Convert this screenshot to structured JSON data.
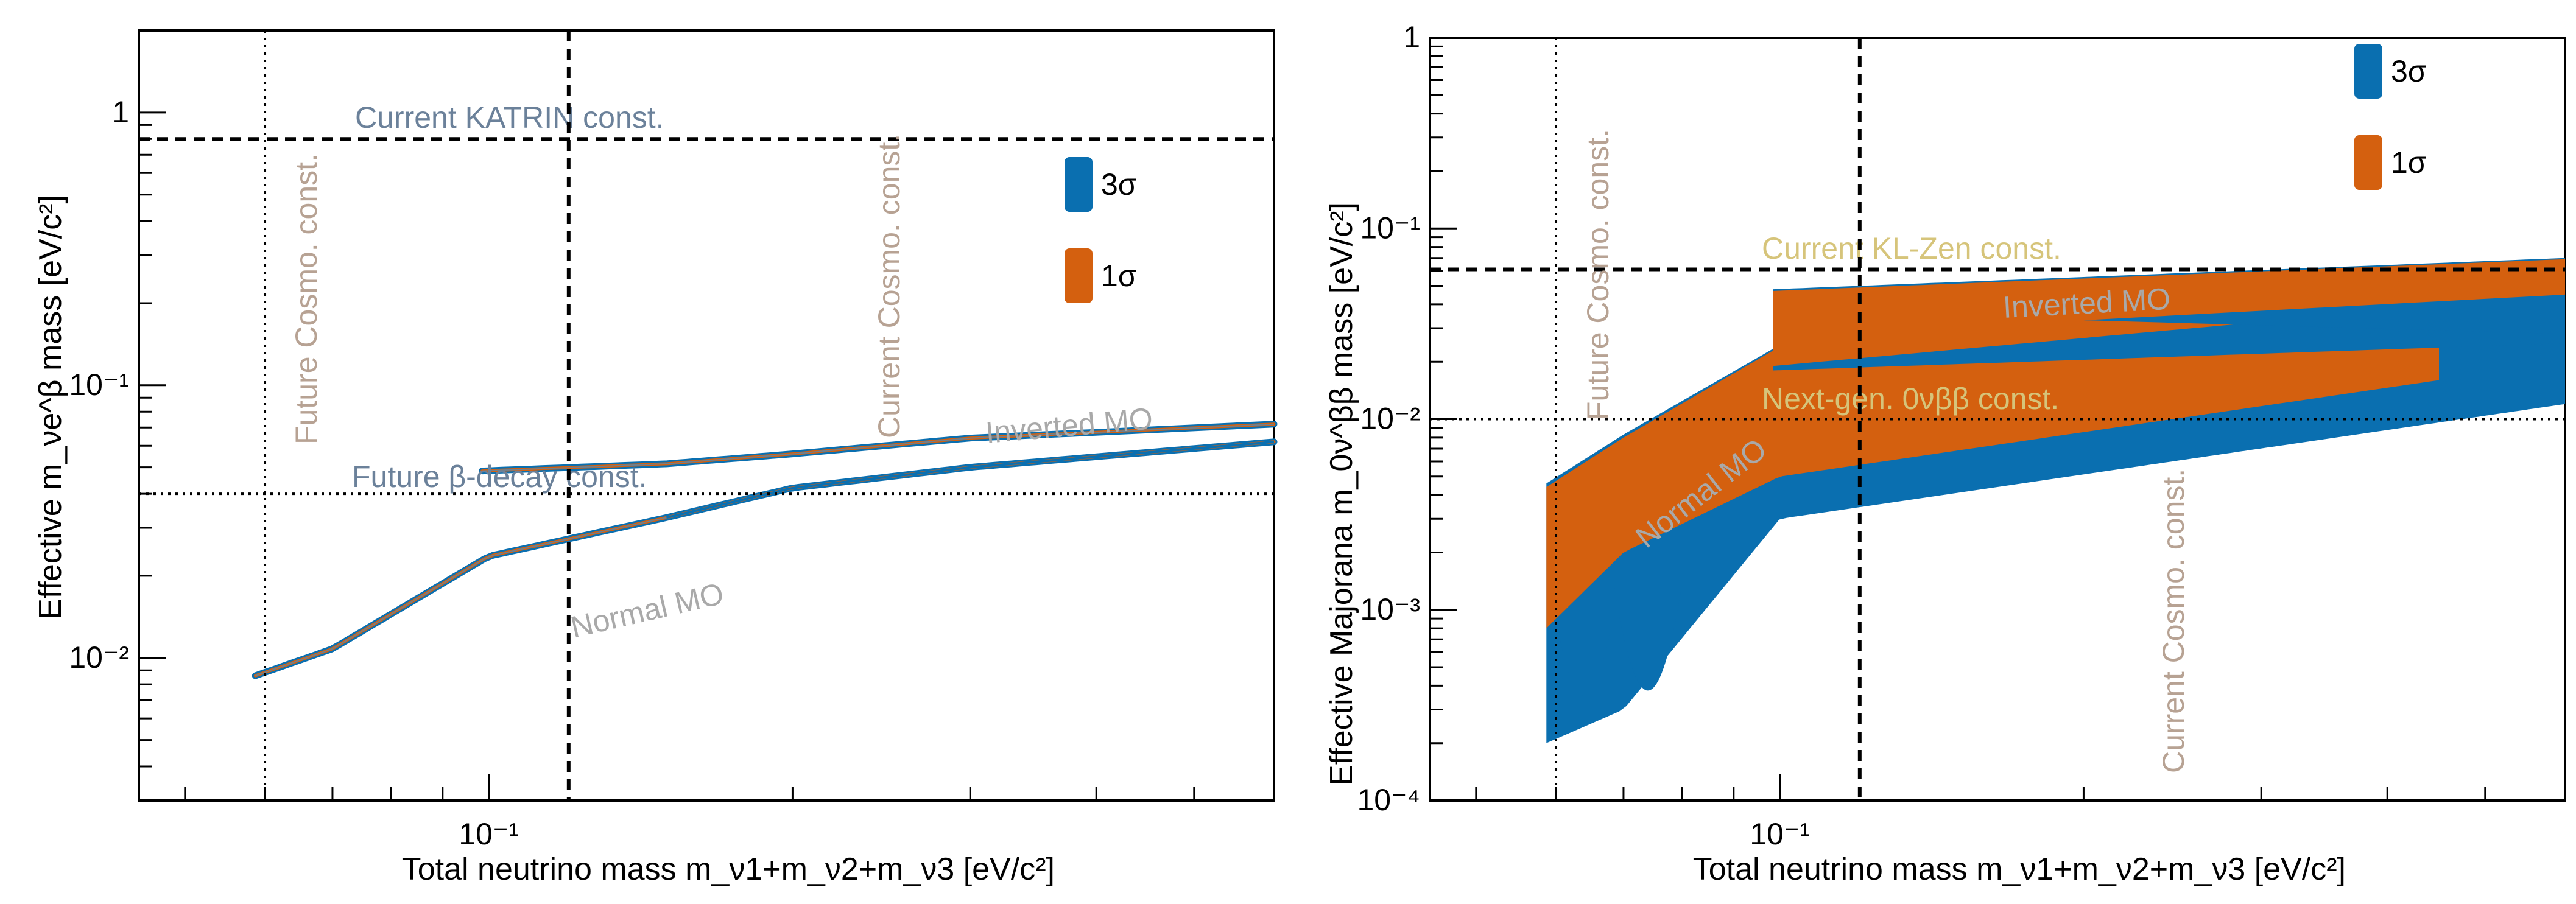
{
  "colors": {
    "three_sigma": "#0a6fb0",
    "one_sigma": "#d4600f",
    "axis": "#000000",
    "label_grey": "#a9a9a9",
    "label_slate": "#6b819a",
    "label_tan": "#b7a293",
    "label_gold": "#d6c47a"
  },
  "chart_data": [
    {
      "id": "left",
      "type": "area",
      "title": "",
      "xlabel": "Total neutrino mass m_ν1+m_ν2+m_ν3 [eV/c²]",
      "ylabel": "Effective m_νe^β mass [eV/c²]",
      "x_scale": "log",
      "y_scale": "log",
      "xlim": [
        0.045,
        0.6
      ],
      "ylim": [
        0.003,
        2.0
      ],
      "x_ticks": [
        {
          "value": 0.1,
          "label": "10⁻¹"
        }
      ],
      "y_ticks": [
        {
          "value": 0.01,
          "label": "10⁻²"
        },
        {
          "value": 0.1,
          "label": "10⁻¹"
        },
        {
          "value": 1,
          "label": "1"
        }
      ],
      "legend": {
        "position": "top-right",
        "entries": [
          "3σ",
          "1σ"
        ]
      },
      "series": [
        {
          "name": "Normal MO",
          "points": [
            [
              0.0587,
              0.0086
            ],
            [
              0.07,
              0.0108
            ],
            [
              0.1,
              0.0236
            ],
            [
              0.15,
              0.0327
            ],
            [
              0.2,
              0.042
            ],
            [
              0.3,
              0.05
            ],
            [
              0.6,
              0.062
            ]
          ]
        },
        {
          "name": "Inverted MO",
          "points": [
            [
              0.0985,
              0.0485
            ],
            [
              0.15,
              0.0515
            ],
            [
              0.2,
              0.056
            ],
            [
              0.3,
              0.064
            ],
            [
              0.6,
              0.072
            ]
          ]
        }
      ],
      "reference_lines": [
        {
          "orientation": "horizontal",
          "value": 0.8,
          "style": "dashed",
          "label": "Current KATRIN const."
        },
        {
          "orientation": "horizontal",
          "value": 0.04,
          "style": "dotted",
          "label": "Future β-decay const."
        },
        {
          "orientation": "vertical",
          "value": 0.06,
          "style": "dotted",
          "label": "Future Cosmo. const."
        },
        {
          "orientation": "vertical",
          "value": 0.12,
          "style": "dashed",
          "label": "Current Cosmo. const."
        }
      ]
    },
    {
      "id": "right",
      "type": "scatter",
      "title": "",
      "xlabel": "Total neutrino mass m_ν1+m_ν2+m_ν3 [eV/c²]",
      "ylabel": "Effective Majorana m_0ν^ββ mass [eV/c²]",
      "x_scale": "log",
      "y_scale": "log",
      "xlim": [
        0.045,
        0.6
      ],
      "ylim": [
        0.0001,
        1.0
      ],
      "x_ticks": [
        {
          "value": 0.1,
          "label": "10⁻¹"
        }
      ],
      "y_ticks": [
        {
          "value": 0.0001,
          "label": "10⁻⁴"
        },
        {
          "value": 0.001,
          "label": "10⁻³"
        },
        {
          "value": 0.01,
          "label": "10⁻²"
        },
        {
          "value": 0.1,
          "label": "10⁻¹"
        },
        {
          "value": 1,
          "label": "1"
        }
      ],
      "legend": {
        "position": "top-right",
        "entries": [
          "3σ",
          "1σ"
        ]
      },
      "series": [
        {
          "name": "Normal MO 3σ",
          "upper": [
            [
              0.0587,
              0.0046
            ],
            [
              0.07,
              0.0083
            ],
            [
              0.1,
              0.0245
            ],
            [
              0.6,
              0.06
            ]
          ],
          "lower": [
            [
              0.0587,
              0.0002
            ],
            [
              0.07,
              0.0003
            ],
            [
              0.1,
              0.003
            ],
            [
              0.6,
              0.012
            ]
          ]
        },
        {
          "name": "Normal MO 1σ",
          "upper": [
            [
              0.0587,
              0.0044
            ],
            [
              0.07,
              0.008
            ],
            [
              0.1,
              0.024
            ],
            [
              0.6,
              0.058
            ]
          ],
          "lower": [
            [
              0.0587,
              0.0008
            ],
            [
              0.07,
              0.002
            ],
            [
              0.1,
              0.005
            ],
            [
              0.6,
              0.02
            ]
          ]
        },
        {
          "name": "Inverted MO 3σ",
          "upper": [
            [
              0.0985,
              0.048
            ],
            [
              0.6,
              0.07
            ]
          ],
          "lower": [
            [
              0.0985,
              0.018
            ],
            [
              0.6,
              0.025
            ]
          ]
        },
        {
          "name": "Inverted MO 1σ",
          "upper": [
            [
              0.0985,
              0.047
            ],
            [
              0.6,
              0.069
            ]
          ],
          "lower": [
            [
              0.0985,
              0.019
            ],
            [
              0.6,
              0.045
            ]
          ]
        }
      ],
      "reference_lines": [
        {
          "orientation": "horizontal",
          "value": 0.061,
          "style": "dashed",
          "label": "Current KL-Zen const."
        },
        {
          "orientation": "horizontal",
          "value": 0.01,
          "style": "dotted",
          "label": "Next-gen. 0νββ const."
        },
        {
          "orientation": "vertical",
          "value": 0.06,
          "style": "dotted",
          "label": "Future Cosmo. const."
        },
        {
          "orientation": "vertical",
          "value": 0.12,
          "style": "dashed",
          "label": "Current Cosmo. const."
        }
      ]
    }
  ],
  "annotations": {
    "left": {
      "normal_mo": "Normal MO",
      "inverted_mo": "Inverted MO"
    },
    "right": {
      "normal_mo": "Normal MO",
      "inverted_mo": "Inverted MO"
    }
  }
}
